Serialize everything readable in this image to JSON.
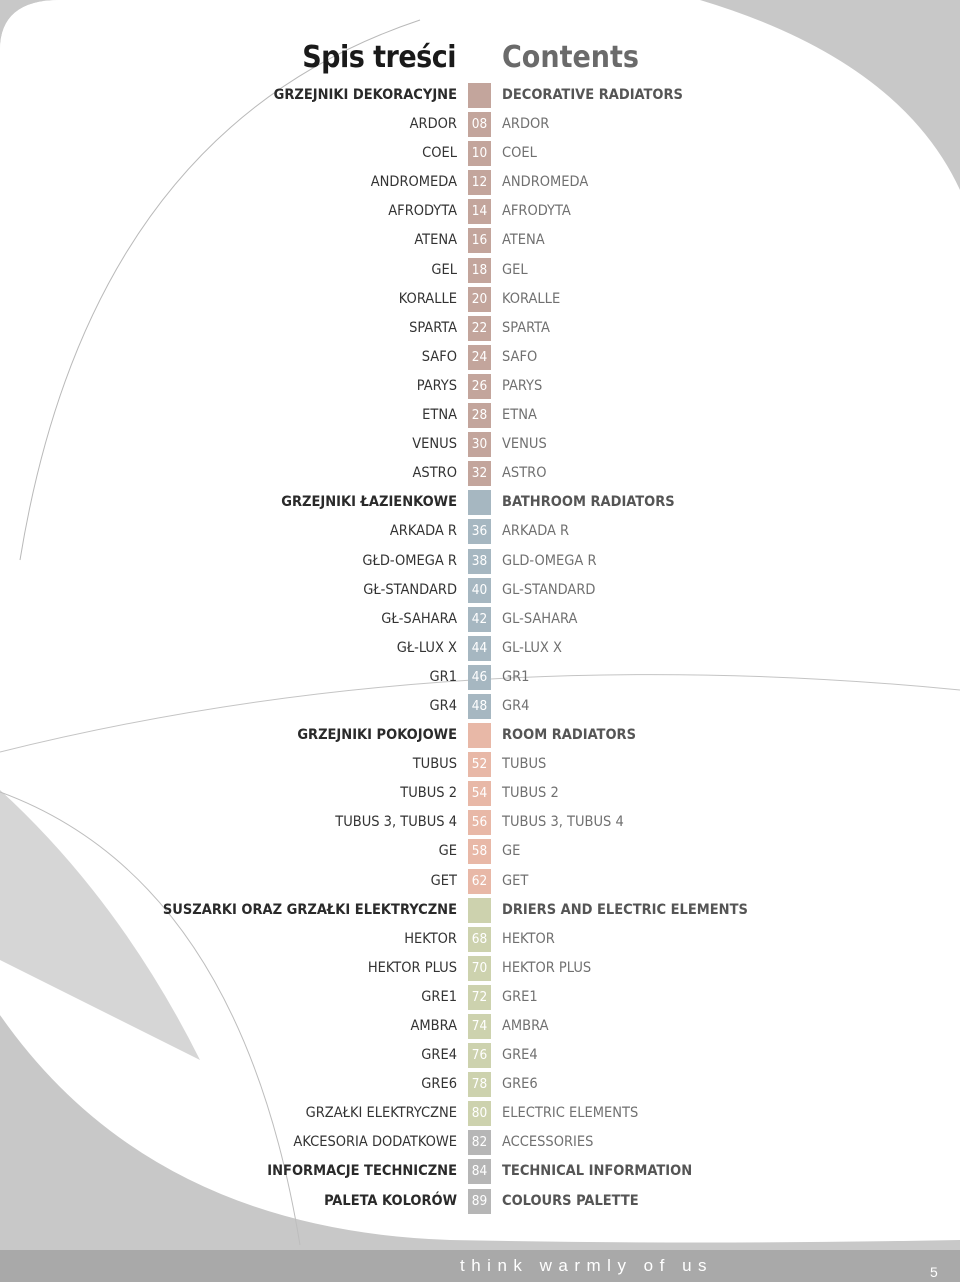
{
  "page": {
    "title_pl": "Spis treści",
    "title_en": "Contents",
    "slogan": "think warmly of us",
    "page_number": "5"
  },
  "colors": {
    "brown": "#c3a59c",
    "blue": "#a6b7c1",
    "pink": "#e8b8a7",
    "green": "#cdd2ae",
    "grey": "#b6b6b6",
    "background_swoosh": "#c8c8c8"
  },
  "rows": [
    {
      "pl": "GRZEJNIKI DEKORACYJNE",
      "num": "",
      "en": "DECORATIVE RADIATORS",
      "color": "brown",
      "style": "head"
    },
    {
      "pl": "ARDOR",
      "num": "08",
      "en": "ARDOR",
      "color": "brown",
      "style": ""
    },
    {
      "pl": "COEL",
      "num": "10",
      "en": "COEL",
      "color": "brown",
      "style": ""
    },
    {
      "pl": "ANDROMEDA",
      "num": "12",
      "en": "ANDROMEDA",
      "color": "brown",
      "style": ""
    },
    {
      "pl": "AFRODYTA",
      "num": "14",
      "en": "AFRODYTA",
      "color": "brown",
      "style": ""
    },
    {
      "pl": "ATENA",
      "num": "16",
      "en": "ATENA",
      "color": "brown",
      "style": ""
    },
    {
      "pl": "GEL",
      "num": "18",
      "en": "GEL",
      "color": "brown",
      "style": ""
    },
    {
      "pl": "KORALLE",
      "num": "20",
      "en": "KORALLE",
      "color": "brown",
      "style": ""
    },
    {
      "pl": "SPARTA",
      "num": "22",
      "en": "SPARTA",
      "color": "brown",
      "style": ""
    },
    {
      "pl": "SAFO",
      "num": "24",
      "en": "SAFO",
      "color": "brown",
      "style": ""
    },
    {
      "pl": "PARYS",
      "num": "26",
      "en": "PARYS",
      "color": "brown",
      "style": ""
    },
    {
      "pl": "ETNA",
      "num": "28",
      "en": "ETNA",
      "color": "brown",
      "style": ""
    },
    {
      "pl": "VENUS",
      "num": "30",
      "en": "VENUS",
      "color": "brown",
      "style": ""
    },
    {
      "pl": "ASTRO",
      "num": "32",
      "en": "ASTRO",
      "color": "brown",
      "style": ""
    },
    {
      "pl": "GRZEJNIKI ŁAZIENKOWE",
      "num": "",
      "en": "BATHROOM RADIATORS",
      "color": "blue",
      "style": "head"
    },
    {
      "pl": "ARKADA R",
      "num": "36",
      "en": "ARKADA R",
      "color": "blue",
      "style": ""
    },
    {
      "pl": "GŁD-OMEGA R",
      "num": "38",
      "en": "GLD-OMEGA R",
      "color": "blue",
      "style": ""
    },
    {
      "pl": "GŁ-STANDARD",
      "num": "40",
      "en": "GL-STANDARD",
      "color": "blue",
      "style": ""
    },
    {
      "pl": "GŁ-SAHARA",
      "num": "42",
      "en": "GL-SAHARA",
      "color": "blue",
      "style": ""
    },
    {
      "pl": "GŁ-LUX X",
      "num": "44",
      "en": "GL-LUX X",
      "color": "blue",
      "style": ""
    },
    {
      "pl": "GR1",
      "num": "46",
      "en": "GR1",
      "color": "blue",
      "style": ""
    },
    {
      "pl": "GR4",
      "num": "48",
      "en": "GR4",
      "color": "blue",
      "style": ""
    },
    {
      "pl": "GRZEJNIKI POKOJOWE",
      "num": "",
      "en": "ROOM RADIATORS",
      "color": "pink",
      "style": "head"
    },
    {
      "pl": "TUBUS",
      "num": "52",
      "en": "TUBUS",
      "color": "pink",
      "style": ""
    },
    {
      "pl": "TUBUS 2",
      "num": "54",
      "en": "TUBUS 2",
      "color": "pink",
      "style": ""
    },
    {
      "pl": "TUBUS 3, TUBUS 4",
      "num": "56",
      "en": "TUBUS 3, TUBUS 4",
      "color": "pink",
      "style": ""
    },
    {
      "pl": "GE",
      "num": "58",
      "en": "GE",
      "color": "pink",
      "style": ""
    },
    {
      "pl": "GET",
      "num": "62",
      "en": "GET",
      "color": "pink",
      "style": ""
    },
    {
      "pl": "SUSZARKI ORAZ GRZAŁKI ELEKTRYCZNE",
      "num": "",
      "en": "DRIERS AND ELECTRIC ELEMENTS",
      "color": "green",
      "style": "head"
    },
    {
      "pl": "HEKTOR",
      "num": "68",
      "en": "HEKTOR",
      "color": "green",
      "style": ""
    },
    {
      "pl": "HEKTOR PLUS",
      "num": "70",
      "en": "HEKTOR PLUS",
      "color": "green",
      "style": ""
    },
    {
      "pl": "GRE1",
      "num": "72",
      "en": "GRE1",
      "color": "green",
      "style": ""
    },
    {
      "pl": "AMBRA",
      "num": "74",
      "en": "AMBRA",
      "color": "green",
      "style": ""
    },
    {
      "pl": "GRE4",
      "num": "76",
      "en": "GRE4",
      "color": "green",
      "style": ""
    },
    {
      "pl": "GRE6",
      "num": "78",
      "en": "GRE6",
      "color": "green",
      "style": ""
    },
    {
      "pl": "GRZAŁKI ELEKTRYCZNE",
      "num": "80",
      "en": "ELECTRIC ELEMENTS",
      "color": "green",
      "style": ""
    },
    {
      "pl": "AKCESORIA DODATKOWE",
      "num": "82",
      "en": "ACCESSORIES",
      "color": "grey",
      "style": ""
    },
    {
      "pl": "INFORMACJE TECHNICZNE",
      "num": "84",
      "en": "TECHNICAL INFORMATION",
      "color": "grey",
      "style": "bold"
    },
    {
      "pl": "PALETA KOLORÓW",
      "num": "89",
      "en": "COLOURS PALETTE",
      "color": "grey",
      "style": "bold"
    }
  ]
}
